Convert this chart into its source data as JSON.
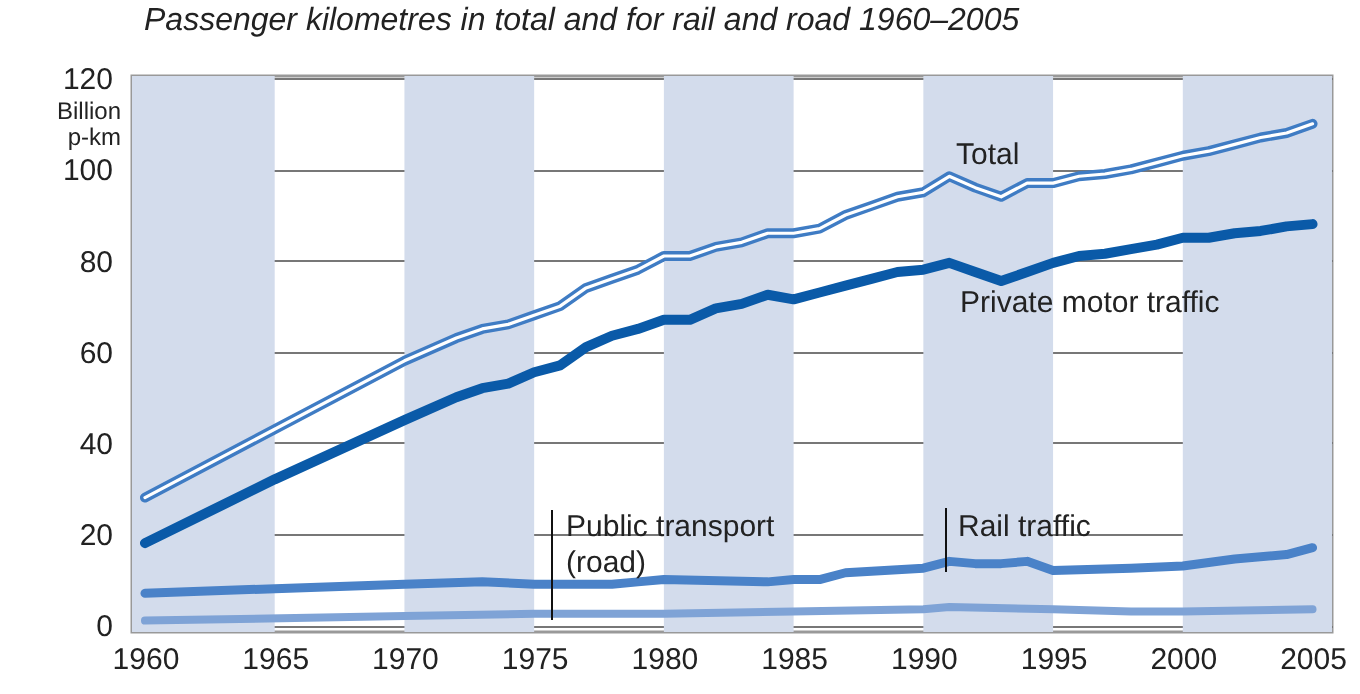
{
  "chart_data": {
    "type": "line",
    "title": "Passenger kilometres in total and for rail and road 1960–2005",
    "ylabel": "Billion p-km",
    "xlim": [
      1959.5,
      2005.75
    ],
    "xticks": [
      1960,
      1965,
      1970,
      1975,
      1980,
      1985,
      1990,
      1995,
      2000,
      2005
    ],
    "ylim": [
      -1.5,
      120.5
    ],
    "yticks": [
      0,
      20,
      40,
      60,
      80,
      100,
      120
    ],
    "grid": "y",
    "legend": false,
    "marker": "none",
    "line_style": "solid",
    "bands": [
      {
        "axis": "x",
        "from": 1959.5,
        "to": 1965,
        "color": "#d3dcec"
      },
      {
        "axis": "x",
        "from": 1970,
        "to": 1975,
        "color": "#d3dcec"
      },
      {
        "axis": "x",
        "from": 1980,
        "to": 1985,
        "color": "#d3dcec"
      },
      {
        "axis": "x",
        "from": 1990,
        "to": 1995,
        "color": "#d3dcec"
      },
      {
        "axis": "x",
        "from": 2000,
        "to": 2005.75,
        "color": "#d3dcec"
      }
    ],
    "series": [
      {
        "name": "Total",
        "color": "#3f7cc4",
        "x": [
          1960,
          1970,
          1972,
          1973,
          1974,
          1975,
          1976,
          1977,
          1978,
          1979,
          1980,
          1981,
          1982,
          1983,
          1984,
          1985,
          1986,
          1987,
          1988,
          1989,
          1990,
          1991,
          1992,
          1993,
          1994,
          1995,
          1996,
          1997,
          1998,
          1999,
          2000,
          2001,
          2002,
          2003,
          2004,
          2005
        ],
        "values": [
          28,
          58,
          63,
          65,
          66,
          68,
          70,
          74,
          76,
          78,
          81,
          81,
          83,
          84,
          86,
          86,
          87,
          90,
          92,
          94,
          95,
          98.5,
          96,
          94,
          97,
          97,
          98.5,
          99,
          100,
          101.5,
          103,
          104,
          105.5,
          107,
          108,
          110
        ]
      },
      {
        "name": "Public transport (road)",
        "color": "#7fa3d6",
        "x": [
          1960,
          1970,
          1975,
          1980,
          1985,
          1990,
          1991,
          1995,
          1998,
          2000,
          2005
        ],
        "values": [
          1,
          2,
          2.5,
          2.5,
          3,
          3.5,
          4,
          3.5,
          3,
          3,
          3.5
        ]
      },
      {
        "name": "Rail traffic",
        "color": "#4a82c8",
        "x": [
          1960,
          1965,
          1970,
          1973,
          1975,
          1978,
          1979,
          1980,
          1984,
          1985,
          1986,
          1987,
          1990,
          1991,
          1992,
          1993,
          1994,
          1995,
          1998,
          2000,
          2002,
          2004,
          2005
        ],
        "values": [
          7,
          8,
          9,
          9.5,
          9,
          9,
          9.5,
          10,
          9.5,
          10,
          10,
          11.5,
          12.5,
          14,
          13.5,
          13.5,
          14,
          12,
          12.5,
          13,
          14.5,
          15.5,
          17
        ]
      },
      {
        "name": "Private motor traffic",
        "color": "#0a5aa8",
        "x": [
          1960,
          1965,
          1970,
          1972,
          1973,
          1974,
          1975,
          1976,
          1977,
          1978,
          1979,
          1980,
          1981,
          1982,
          1983,
          1984,
          1985,
          1986,
          1987,
          1988,
          1989,
          1990,
          1991,
          1992,
          1993,
          1994,
          1995,
          1996,
          1997,
          1998,
          1999,
          2000,
          2001,
          2002,
          2003,
          2004,
          2005
        ],
        "values": [
          18,
          32,
          45,
          50,
          52,
          53,
          55.5,
          57,
          61,
          63.5,
          65,
          67,
          67,
          69.5,
          70.5,
          72.5,
          71.5,
          73,
          74.5,
          76,
          77.5,
          78,
          79.5,
          77.5,
          75.5,
          77.5,
          79.5,
          81,
          81.5,
          82.5,
          83.5,
          85,
          85,
          86,
          86.5,
          87.5,
          88
        ]
      }
    ]
  }
}
